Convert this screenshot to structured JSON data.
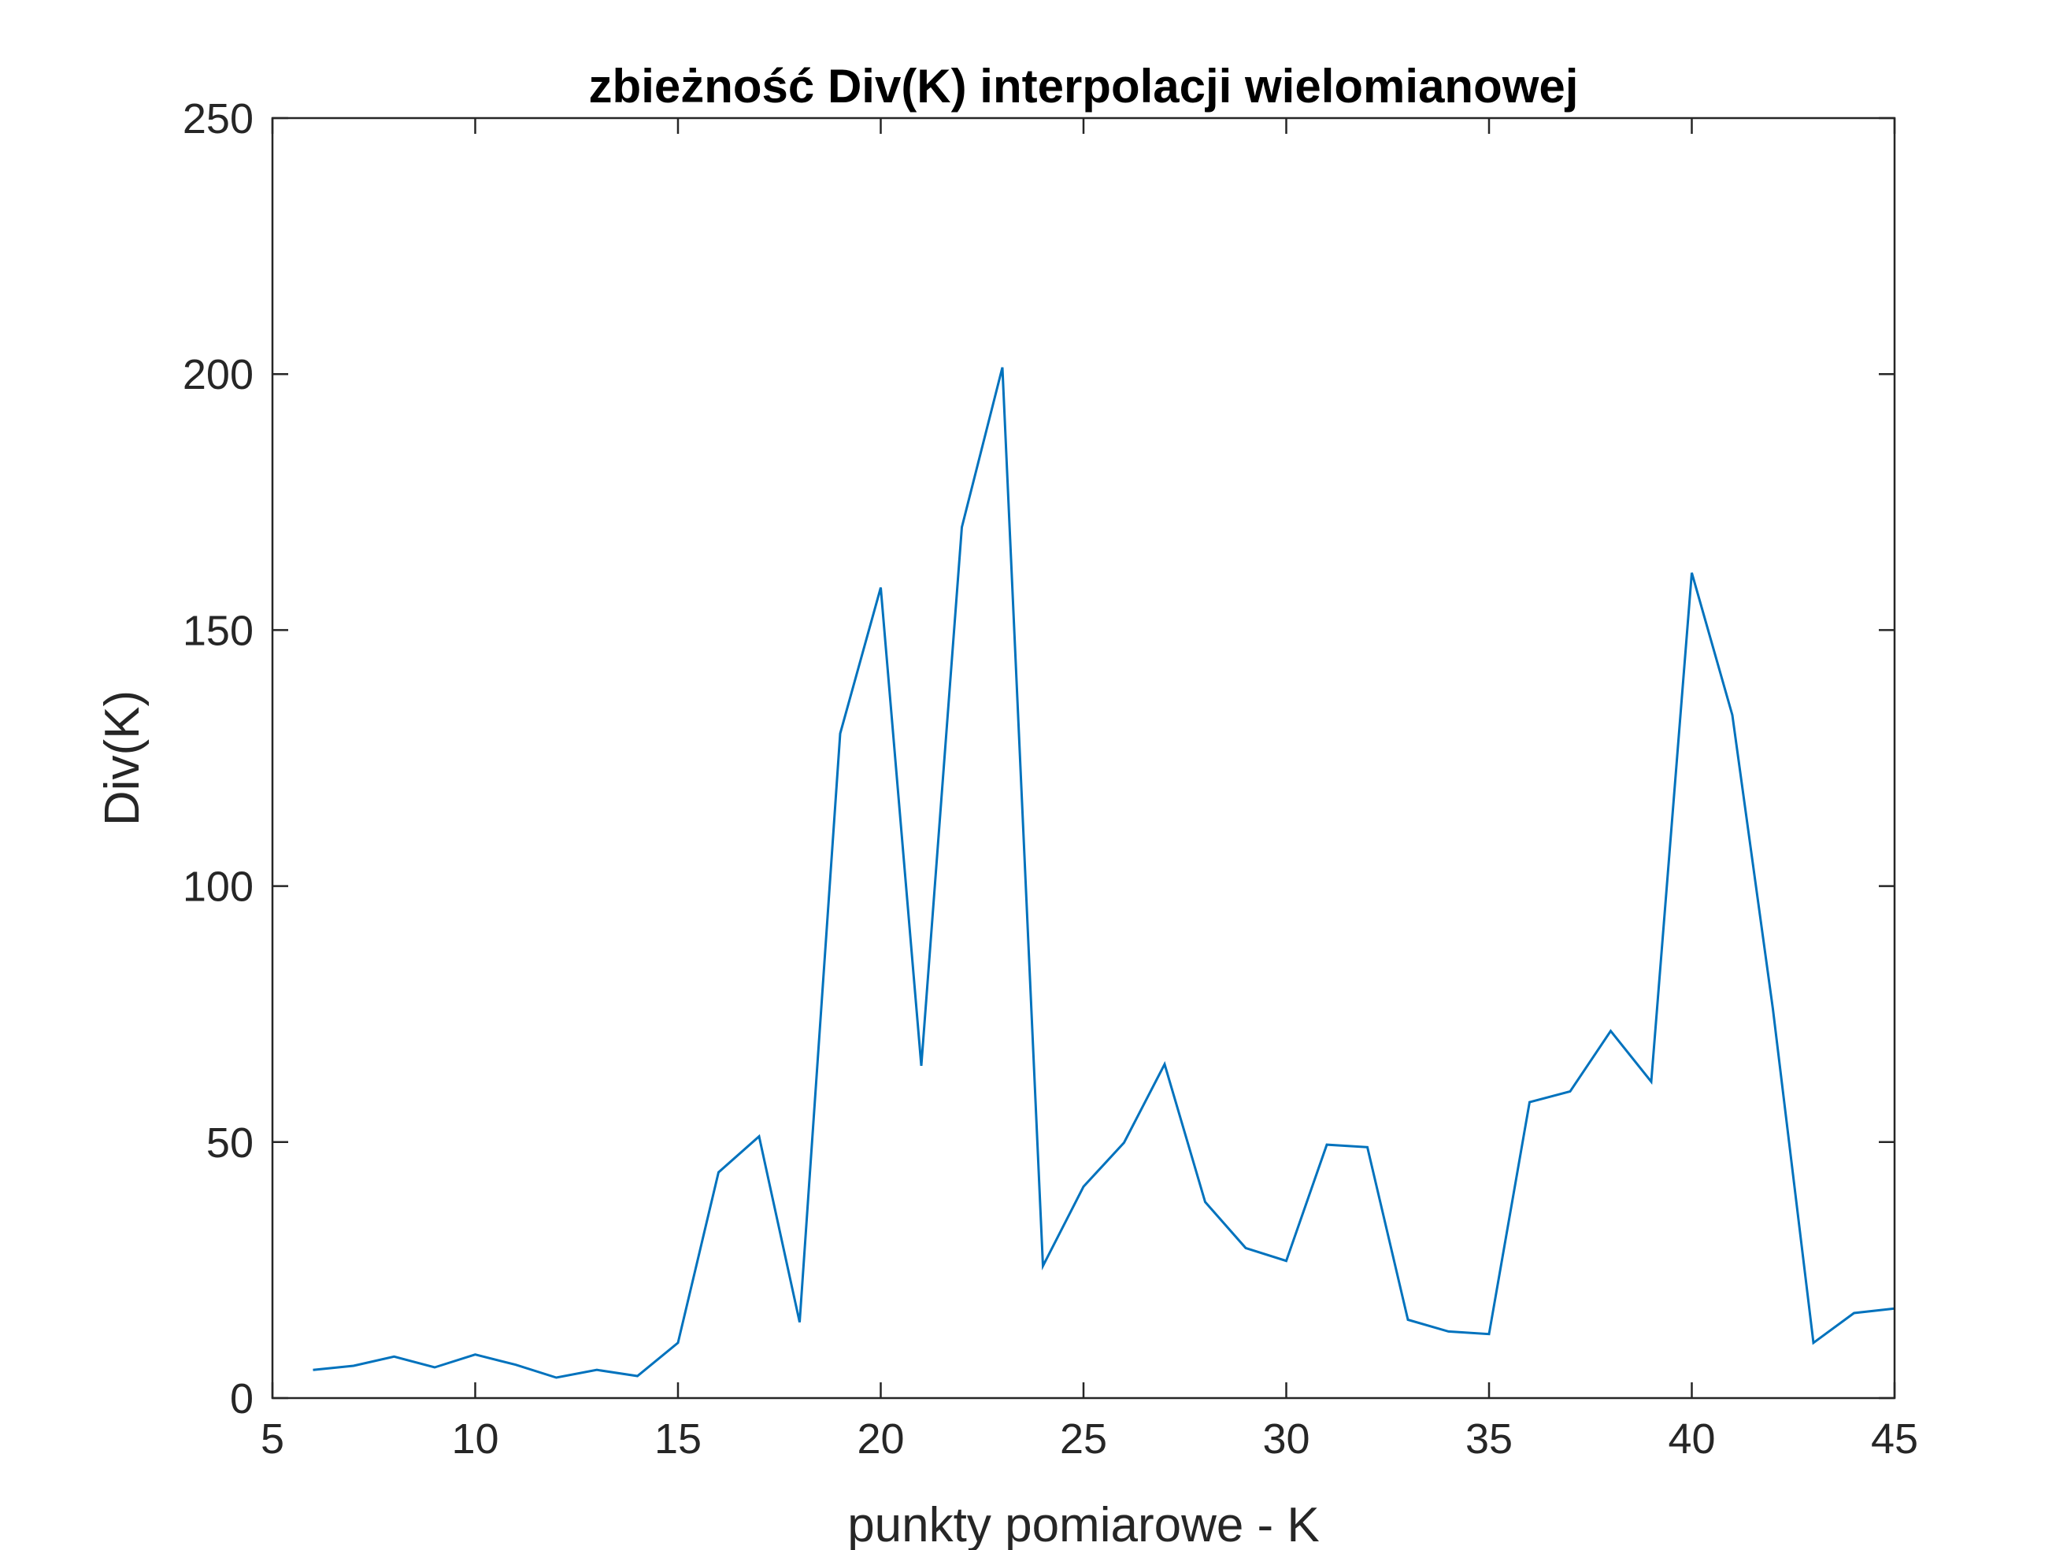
{
  "chart_data": {
    "type": "line",
    "title": "zbieżność Div(K) interpolacji wielomianowej",
    "xlabel": "punkty pomiarowe - K",
    "ylabel": "Div(K)",
    "xlim": [
      5,
      45
    ],
    "ylim": [
      0,
      250
    ],
    "xticks": [
      "5",
      "10",
      "15",
      "20",
      "25",
      "30",
      "35",
      "40",
      "45"
    ],
    "yticks": [
      "0",
      "50",
      "100",
      "150",
      "200",
      "250"
    ],
    "grid": false,
    "line_color": "#0072BD",
    "x": [
      6,
      7,
      8,
      9,
      10,
      11,
      12,
      13,
      14,
      15,
      16,
      17,
      18,
      19,
      20,
      21,
      22,
      23,
      24,
      25,
      26,
      27,
      28,
      29,
      30,
      31,
      32,
      33,
      34,
      35,
      36,
      37,
      38,
      39,
      40,
      41,
      42,
      43,
      44,
      45
    ],
    "y": [
      5.5,
      6.3,
      8.1,
      6.0,
      8.5,
      6.5,
      4.0,
      5.5,
      4.3,
      10.8,
      44.1,
      51.1,
      14.8,
      129.8,
      158.3,
      64.9,
      170.1,
      201.3,
      25.8,
      41.3,
      49.9,
      65.2,
      38.3,
      29.3,
      26.8,
      49.5,
      49.0,
      15.3,
      13.0,
      12.5,
      57.8,
      59.9,
      71.7,
      61.8,
      161.2,
      133.4,
      76.0,
      10.8,
      16.6,
      17.5
    ]
  }
}
